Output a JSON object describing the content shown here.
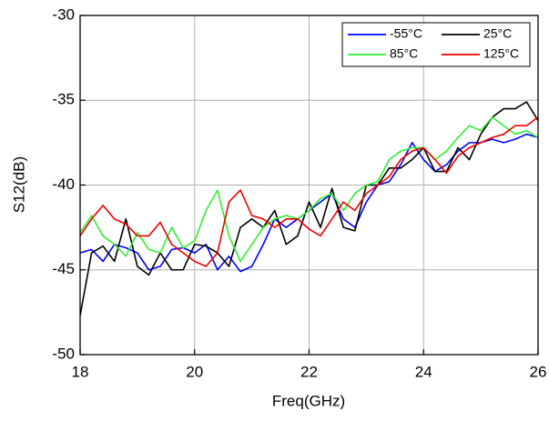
{
  "chart_data": {
    "type": "line",
    "x_label": "Freq(GHz)",
    "y_label": "S12(dB)",
    "x": [
      18,
      18.2,
      18.4,
      18.6,
      18.8,
      19,
      19.2,
      19.4,
      19.6,
      19.8,
      20,
      20.2,
      20.4,
      20.6,
      20.8,
      21,
      21.2,
      21.4,
      21.6,
      21.8,
      22,
      22.2,
      22.4,
      22.6,
      22.8,
      23,
      23.2,
      23.4,
      23.6,
      23.8,
      24,
      24.2,
      24.4,
      24.6,
      24.8,
      25,
      25.2,
      25.4,
      25.6,
      25.8,
      26
    ],
    "series": [
      {
        "name": "-55°C",
        "color": "#0000ff",
        "values": [
          -44,
          -43.8,
          -44.5,
          -43.5,
          -43.7,
          -44.0,
          -45.0,
          -44.8,
          -43.8,
          -43.7,
          -44.0,
          -43.5,
          -45.0,
          -44.2,
          -45.1,
          -44.8,
          -43.5,
          -42.0,
          -42.5,
          -42.0,
          -41.5,
          -41.0,
          -40.5,
          -42.0,
          -42.5,
          -41.0,
          -40.0,
          -39.8,
          -38.8,
          -37.5,
          -38.5,
          -39.2,
          -38.8,
          -38.0,
          -37.5,
          -37.5,
          -37.3,
          -37.5,
          -37.3,
          -37.0,
          -37.2
        ]
      },
      {
        "name": "25°C",
        "color": "#000000",
        "values": [
          -47.7,
          -44.0,
          -43.6,
          -44.5,
          -42.0,
          -44.8,
          -45.3,
          -44.0,
          -45.0,
          -45.0,
          -43.5,
          -43.6,
          -44.0,
          -44.8,
          -42.5,
          -42.0,
          -42.5,
          -41.5,
          -43.5,
          -43.0,
          -41.0,
          -42.5,
          -40.2,
          -42.5,
          -42.7,
          -40.0,
          -40.0,
          -39.0,
          -39.0,
          -38.5,
          -37.8,
          -39.2,
          -39.2,
          -37.8,
          -38.5,
          -37.0,
          -36.0,
          -35.5,
          -35.5,
          -35.1,
          -36.2
        ]
      },
      {
        "name": "85°C",
        "color": "#33ee33",
        "values": [
          -42.8,
          -41.8,
          -43.0,
          -43.5,
          -44.2,
          -42.8,
          -43.8,
          -44.0,
          -42.5,
          -43.7,
          -43.3,
          -41.5,
          -40.3,
          -43.0,
          -44.5,
          -43.5,
          -42.5,
          -42.0,
          -41.8,
          -42.0,
          -41.5,
          -40.8,
          -40.5,
          -41.5,
          -40.5,
          -40.0,
          -39.8,
          -38.5,
          -38.0,
          -37.8,
          -37.8,
          -38.5,
          -38.0,
          -37.2,
          -36.5,
          -36.8,
          -36.0,
          -36.5,
          -37.0,
          -36.8,
          -37.2
        ]
      },
      {
        "name": "125°C",
        "color": "#ee0000",
        "values": [
          -43.0,
          -42.0,
          -41.2,
          -42.0,
          -42.3,
          -43.0,
          -43.0,
          -42.2,
          -43.5,
          -44.0,
          -44.5,
          -44.8,
          -44.0,
          -41.0,
          -40.3,
          -41.8,
          -42.0,
          -42.5,
          -42.0,
          -42.0,
          -42.6,
          -43.0,
          -42.0,
          -41.0,
          -41.5,
          -40.5,
          -40.0,
          -39.5,
          -38.5,
          -38.0,
          -37.8,
          -38.5,
          -39.3,
          -38.3,
          -37.8,
          -37.5,
          -37.2,
          -37.0,
          -36.5,
          -36.5,
          -36.0
        ]
      }
    ],
    "xlim": [
      18,
      26
    ],
    "ylim": [
      -50,
      -30
    ],
    "xticks": [
      18,
      20,
      22,
      24,
      26
    ],
    "yticks": [
      -50,
      -45,
      -40,
      -35,
      -30
    ],
    "grid": true,
    "legend": "top-right"
  }
}
